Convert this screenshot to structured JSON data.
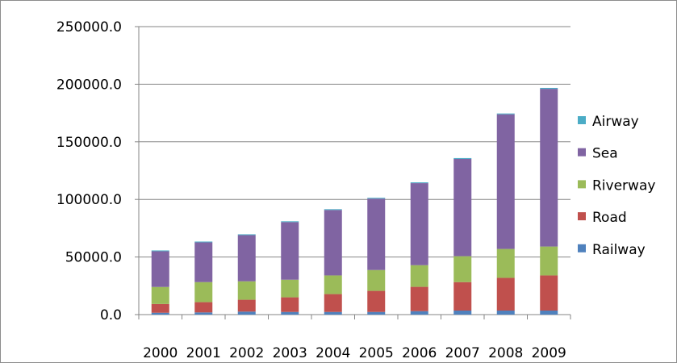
{
  "chart_data": {
    "type": "bar",
    "stacked": true,
    "categories": [
      "2000",
      "2001",
      "2002",
      "2003",
      "2004",
      "2005",
      "2006",
      "2007",
      "2008",
      "2009"
    ],
    "series": [
      {
        "name": "Railway",
        "color": "#4F81BD",
        "values": [
          1600,
          1900,
          2600,
          2300,
          2300,
          2300,
          3000,
          3500,
          3500,
          3500
        ]
      },
      {
        "name": "Road",
        "color": "#C0504D",
        "values": [
          7600,
          8900,
          10300,
          12700,
          15500,
          18300,
          21100,
          24700,
          28400,
          30500
        ]
      },
      {
        "name": "Riverway",
        "color": "#9BBB59",
        "values": [
          14800,
          17400,
          16000,
          15300,
          16200,
          18100,
          18800,
          22500,
          25100,
          25100
        ]
      },
      {
        "name": "Sea",
        "color": "#8064A2",
        "values": [
          31000,
          34500,
          40100,
          50000,
          56800,
          62000,
          71200,
          84500,
          116900,
          136900
        ]
      },
      {
        "name": "Airway",
        "color": "#4BACC6",
        "values": [
          700,
          700,
          700,
          700,
          700,
          700,
          700,
          700,
          700,
          800
        ]
      }
    ],
    "ylim": [
      0,
      250000
    ],
    "yticks": [
      "0.0",
      "50000.0",
      "100000.0",
      "150000.0",
      "200000.0",
      "250000.0"
    ],
    "grid": true,
    "legend": "right"
  }
}
